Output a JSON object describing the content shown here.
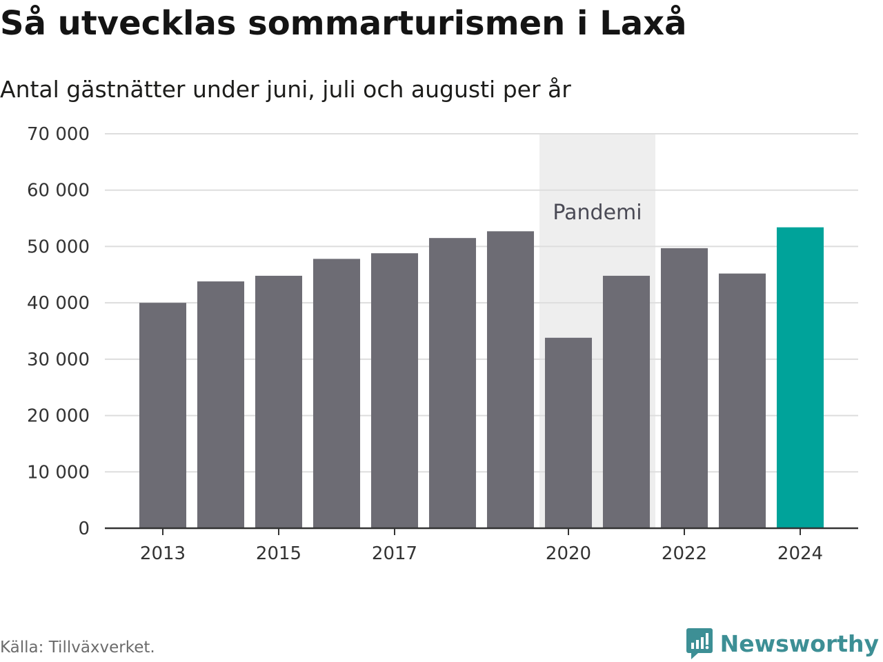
{
  "title": "Så utvecklas sommarturismen i Laxå",
  "subtitle": "Antal gästnätter under juni, juli och augusti per år",
  "source": "Källa: Tillväxverket.",
  "brand": {
    "name": "Newsworthy",
    "icon": "newsworthy-logo-icon",
    "color": "#3d8f95"
  },
  "colors": {
    "bar": "#6d6c74",
    "highlight": "#00a39a",
    "band": "#eeeeee",
    "grid": "#dddddd",
    "axis": "#333333"
  },
  "chart_data": {
    "type": "bar",
    "title": "Så utvecklas sommarturismen i Laxå",
    "subtitle": "Antal gästnätter under juni, juli och augusti per år",
    "x": [
      2013,
      2014,
      2015,
      2016,
      2017,
      2018,
      2019,
      2020,
      2021,
      2022,
      2023,
      2024
    ],
    "values": [
      40000,
      43800,
      44800,
      47800,
      48800,
      51500,
      52700,
      33800,
      44800,
      49700,
      45200,
      53400
    ],
    "highlight": [
      2024
    ],
    "ylim": [
      0,
      70000
    ],
    "yticks": [
      0,
      10000,
      20000,
      30000,
      40000,
      50000,
      60000,
      70000
    ],
    "ytick_labels": [
      "0",
      "10 000",
      "20 000",
      "30 000",
      "40 000",
      "50 000",
      "60 000",
      "70 000"
    ],
    "xticks": [
      2013,
      2015,
      2017,
      2020,
      2022,
      2024
    ],
    "xtick_labels": [
      "2013",
      "2015",
      "2017",
      "2020",
      "2022",
      "2024"
    ],
    "grid": true,
    "annotations": [
      {
        "type": "band",
        "from": 2019.5,
        "to": 2021.5,
        "label": "Pandemi"
      }
    ],
    "xlabel": "",
    "ylabel": ""
  }
}
